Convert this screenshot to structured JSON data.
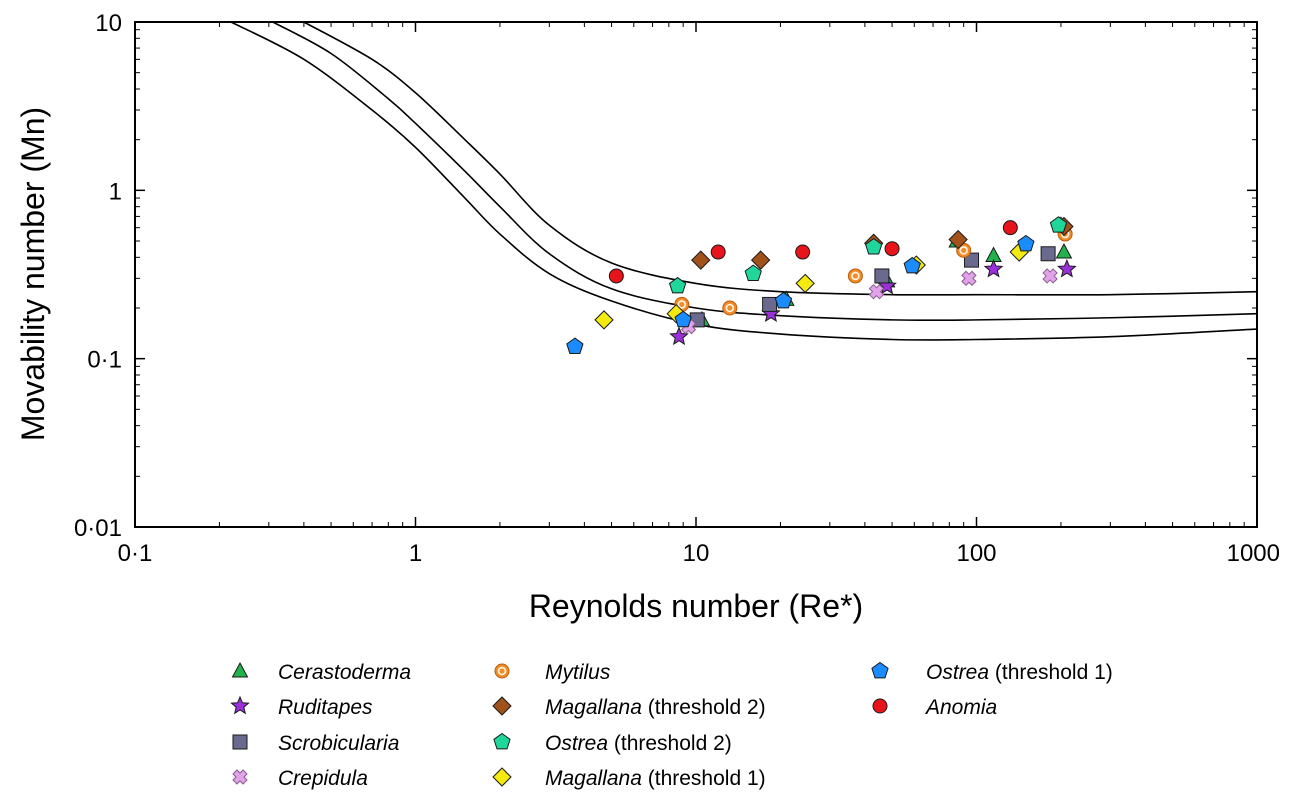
{
  "chart_data": {
    "type": "scatter",
    "title": "",
    "xlabel": "Reynolds number (Re*)",
    "ylabel": "Movability number (Mn)",
    "xscale": "log",
    "yscale": "log",
    "xlim": [
      0.1,
      1000
    ],
    "ylim": [
      0.01,
      10
    ],
    "x_tick_labels": [
      "0·1",
      "1",
      "10",
      "100",
      "1000"
    ],
    "y_tick_labels": [
      "0·01",
      "0·1",
      "1",
      "10"
    ],
    "grid": false,
    "legend_position": "bottom",
    "curves": [
      {
        "x": [
          0.22,
          0.4,
          0.7,
          1.0,
          1.5,
          2.0,
          3.0,
          5.0,
          10,
          20,
          50,
          100,
          300,
          1000
        ],
        "y": [
          10,
          6.0,
          3.0,
          1.8,
          0.9,
          0.55,
          0.32,
          0.22,
          0.16,
          0.14,
          0.13,
          0.13,
          0.135,
          0.15
        ]
      },
      {
        "x": [
          0.31,
          0.5,
          0.8,
          1.0,
          1.5,
          2.0,
          3.0,
          5.0,
          10,
          20,
          50,
          100,
          300,
          1000
        ],
        "y": [
          10,
          6.5,
          3.5,
          2.5,
          1.3,
          0.8,
          0.42,
          0.26,
          0.2,
          0.18,
          0.17,
          0.17,
          0.175,
          0.185
        ]
      },
      {
        "x": [
          0.4,
          0.7,
          1.0,
          1.5,
          2.0,
          3.0,
          5.0,
          10,
          20,
          50,
          100,
          300,
          1000
        ],
        "y": [
          10,
          6.0,
          3.8,
          2.0,
          1.25,
          0.62,
          0.37,
          0.28,
          0.25,
          0.24,
          0.24,
          0.24,
          0.25
        ]
      }
    ],
    "series": [
      {
        "name": "Cerastoderma",
        "name_suffix": "",
        "marker": "triangle",
        "color": "#22b14c",
        "points": [
          [
            10.5,
            0.17
          ],
          [
            21,
            0.225
          ],
          [
            48,
            0.29
          ],
          [
            115,
            0.41
          ],
          [
            205,
            0.43
          ],
          [
            200,
            0.62
          ],
          [
            85,
            0.5
          ]
        ]
      },
      {
        "name": "Ruditapes",
        "name_suffix": "",
        "marker": "star",
        "color": "#9b30d9",
        "points": [
          [
            8.7,
            0.135
          ],
          [
            18.5,
            0.185
          ],
          [
            48,
            0.27
          ],
          [
            115,
            0.34
          ],
          [
            210,
            0.34
          ]
        ]
      },
      {
        "name": "Scrobicularia",
        "name_suffix": "",
        "marker": "square",
        "color": "#6a6a8e",
        "points": [
          [
            10.1,
            0.17
          ],
          [
            18.3,
            0.21
          ],
          [
            46,
            0.31
          ],
          [
            96,
            0.385
          ],
          [
            180,
            0.42
          ]
        ]
      },
      {
        "name": "Crepidula",
        "name_suffix": "",
        "marker": "cross",
        "color": "#e0a3e8",
        "points": [
          [
            9.4,
            0.155
          ],
          [
            44,
            0.25
          ],
          [
            94,
            0.3
          ],
          [
            183,
            0.31
          ]
        ]
      },
      {
        "name": "Mytilus",
        "name_suffix": "",
        "marker": "bullseye",
        "color": "#f28c28",
        "points": [
          [
            8.9,
            0.21
          ],
          [
            13.2,
            0.2
          ],
          [
            37,
            0.31
          ],
          [
            90,
            0.44
          ],
          [
            207,
            0.55
          ]
        ]
      },
      {
        "name": "Magallana",
        "name_suffix": " (threshold 2)",
        "marker": "diamond",
        "color": "#a0521a",
        "points": [
          [
            10.4,
            0.385
          ],
          [
            17,
            0.385
          ],
          [
            43,
            0.485
          ],
          [
            86,
            0.51
          ],
          [
            205,
            0.61
          ]
        ]
      },
      {
        "name": "Ostrea",
        "name_suffix": " (threshold 2)",
        "marker": "pentagon",
        "color": "#1fd69b",
        "points": [
          [
            8.6,
            0.27
          ],
          [
            16,
            0.32
          ],
          [
            43,
            0.46
          ],
          [
            196,
            0.62
          ]
        ]
      },
      {
        "name": "Magallana",
        "name_suffix": " (threshold 1)",
        "marker": "diamond",
        "color": "#f4ea10",
        "points": [
          [
            4.7,
            0.17
          ],
          [
            8.5,
            0.185
          ],
          [
            24.5,
            0.28
          ],
          [
            61,
            0.36
          ],
          [
            142,
            0.43
          ]
        ]
      },
      {
        "name": "Ostrea",
        "name_suffix": " (threshold 1)",
        "marker": "pentagon",
        "color": "#1a8cff",
        "points": [
          [
            3.7,
            0.118
          ],
          [
            9.0,
            0.17
          ],
          [
            20.5,
            0.22
          ],
          [
            59,
            0.355
          ],
          [
            150,
            0.48
          ]
        ]
      },
      {
        "name": "Anomia",
        "name_suffix": "",
        "marker": "circle",
        "color": "#e8141c",
        "points": [
          [
            5.2,
            0.31
          ],
          [
            12,
            0.43
          ],
          [
            24,
            0.43
          ],
          [
            50,
            0.45
          ],
          [
            132,
            0.6
          ]
        ]
      }
    ]
  }
}
